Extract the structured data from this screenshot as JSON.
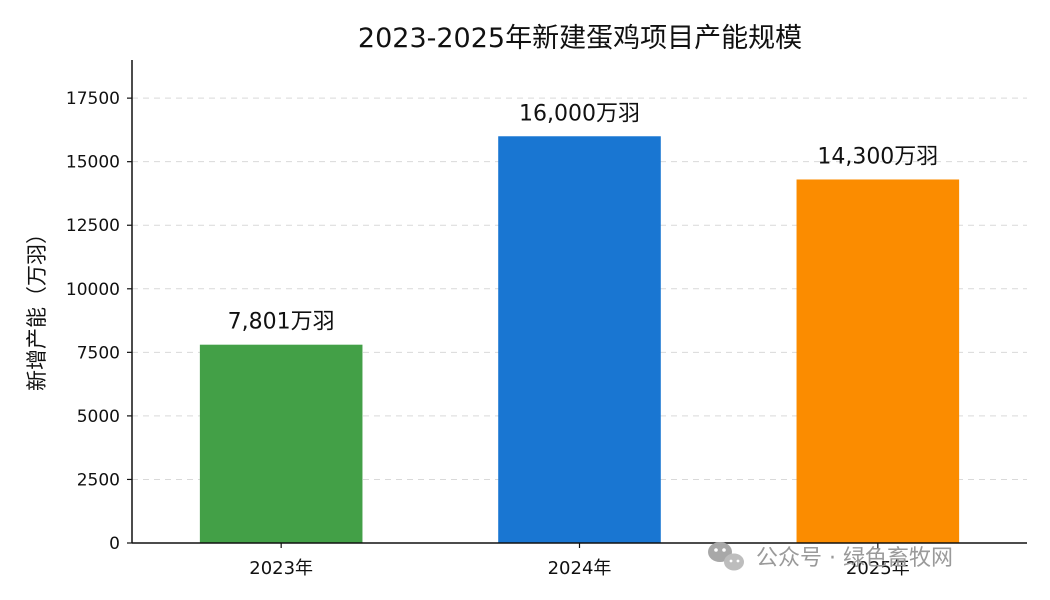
{
  "chart_data": {
    "type": "bar",
    "title": "2023-2025年新建蛋鸡项目产能规模",
    "xlabel": "",
    "ylabel": "新增产能（万羽）",
    "categories": [
      "2023年",
      "2024年",
      "2025年"
    ],
    "values": [
      7801,
      16000,
      14300
    ],
    "data_labels": [
      "7,801万羽",
      "16,000万羽",
      "14,300万羽"
    ],
    "colors": [
      "#43a047",
      "#1976d2",
      "#fb8c00"
    ],
    "ylim": [
      0,
      19000
    ],
    "yticks": [
      0,
      2500,
      5000,
      7500,
      10000,
      12500,
      15000,
      17500
    ],
    "grid": "horizontal-dashed",
    "legend": "none"
  },
  "watermark": {
    "text": "公众号 · 绿色畜牧网",
    "icon": "wechat-icon"
  }
}
